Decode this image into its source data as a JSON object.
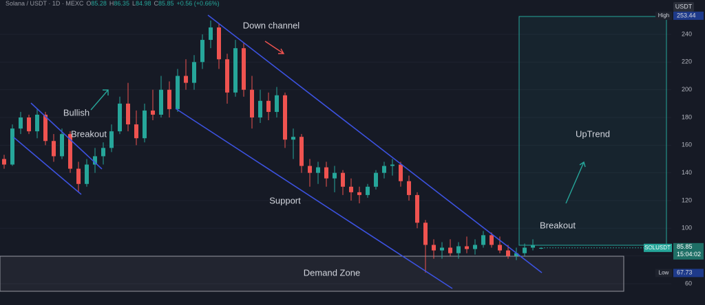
{
  "chart_data": {
    "type": "candlestick",
    "symbol": "Solana / USDT · 1D · MEXC",
    "ohlc_labels": [
      "O",
      "H",
      "L",
      "C"
    ],
    "change": "+0.56 (+0.66%)",
    "currency": "USDT",
    "up_color": "#26a69a",
    "down_color": "#ef5350",
    "ylim": [
      44.6,
      264.8
    ],
    "yticks": [
      60,
      80,
      100,
      120,
      140,
      160,
      180,
      200,
      220,
      240
    ],
    "grid": true,
    "high": {
      "label": "High",
      "value": 253.44
    },
    "low": {
      "label": "Low",
      "value": 67.73
    },
    "last": {
      "label": "SOLUSDT",
      "time": "15:04:02"
    },
    "annotations": [
      "Down channel",
      "Bullish",
      "Breakout",
      "Support",
      "UpTrend",
      "Breakout",
      "Demand Zone"
    ],
    "candles": [
      [
        150,
        153,
        143,
        146
      ],
      [
        146,
        175,
        145,
        172
      ],
      [
        172,
        184,
        168,
        180
      ],
      [
        180,
        182,
        168,
        170
      ],
      [
        170,
        186,
        165,
        182
      ],
      [
        182,
        184,
        160,
        163
      ],
      [
        163,
        168,
        148,
        152
      ],
      [
        152,
        172,
        150,
        168
      ],
      [
        168,
        170,
        140,
        143
      ],
      [
        143,
        148,
        126,
        132
      ],
      [
        132,
        150,
        130,
        146
      ],
      [
        146,
        158,
        140,
        152
      ],
      [
        152,
        162,
        146,
        158
      ],
      [
        158,
        175,
        155,
        170
      ],
      [
        170,
        195,
        168,
        190
      ],
      [
        190,
        205,
        170,
        175
      ],
      [
        175,
        185,
        160,
        165
      ],
      [
        165,
        190,
        162,
        185
      ],
      [
        185,
        200,
        178,
        182
      ],
      [
        182,
        210,
        180,
        200
      ],
      [
        200,
        206,
        180,
        186
      ],
      [
        186,
        215,
        184,
        210
      ],
      [
        210,
        222,
        200,
        205
      ],
      [
        205,
        225,
        200,
        220
      ],
      [
        220,
        240,
        215,
        236
      ],
      [
        236,
        250,
        230,
        245
      ],
      [
        245,
        248,
        215,
        222
      ],
      [
        222,
        226,
        190,
        198
      ],
      [
        198,
        236,
        195,
        230
      ],
      [
        230,
        234,
        195,
        200
      ],
      [
        200,
        210,
        172,
        180
      ],
      [
        180,
        200,
        176,
        192
      ],
      [
        192,
        198,
        178,
        184
      ],
      [
        184,
        202,
        180,
        196
      ],
      [
        196,
        198,
        158,
        164
      ],
      [
        164,
        172,
        150,
        166
      ],
      [
        166,
        168,
        140,
        145
      ],
      [
        145,
        150,
        130,
        140
      ],
      [
        140,
        148,
        132,
        144
      ],
      [
        144,
        148,
        130,
        136
      ],
      [
        136,
        145,
        126,
        140
      ],
      [
        140,
        142,
        124,
        130
      ],
      [
        130,
        136,
        120,
        126
      ],
      [
        126,
        130,
        118,
        124
      ],
      [
        124,
        132,
        122,
        130
      ],
      [
        130,
        142,
        128,
        140
      ],
      [
        140,
        148,
        136,
        145
      ],
      [
        145,
        150,
        138,
        146
      ],
      [
        146,
        148,
        130,
        134
      ],
      [
        134,
        138,
        120,
        124
      ],
      [
        124,
        126,
        100,
        104
      ],
      [
        104,
        106,
        68,
        88
      ],
      [
        88,
        92,
        78,
        84
      ],
      [
        84,
        90,
        78,
        86
      ],
      [
        86,
        92,
        80,
        82
      ],
      [
        82,
        90,
        78,
        87
      ],
      [
        87,
        94,
        82,
        85
      ],
      [
        85,
        92,
        81,
        88
      ],
      [
        88,
        98,
        86,
        95
      ],
      [
        95,
        97,
        86,
        88
      ],
      [
        88,
        94,
        82,
        84
      ],
      [
        84,
        88,
        78,
        80
      ],
      [
        80,
        86,
        77,
        82
      ],
      [
        82,
        89,
        80,
        86
      ],
      [
        86,
        92,
        84,
        88
      ],
      [
        85.28,
        86.35,
        84.98,
        85.85
      ]
    ]
  }
}
